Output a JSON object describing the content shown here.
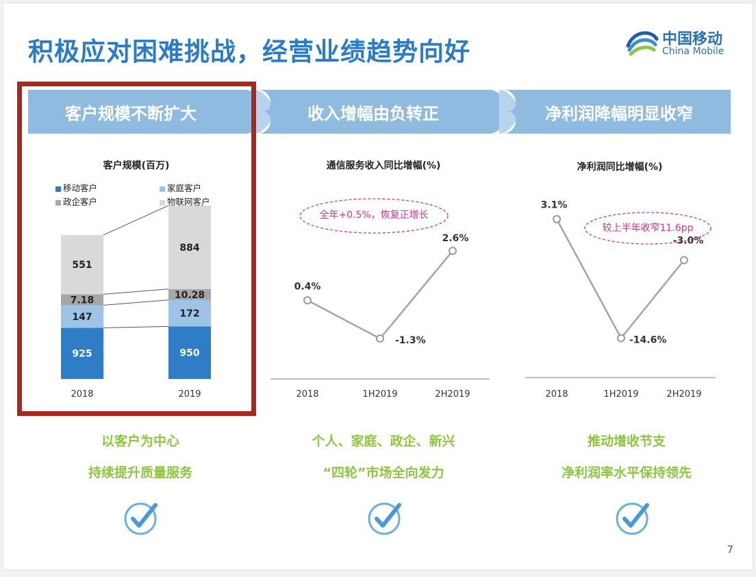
{
  "title": "积极应对困难挑战，经营业绩趋势向好",
  "logo": {
    "cn": "中国移动",
    "en": "China Mobile"
  },
  "banners": [
    "客户规模不断扩大",
    "收入增幅由负转正",
    "净利润降幅明显收窄"
  ],
  "callouts": [
    "全年+0.5%，恢复正增长",
    "较上半年收窄11.6pp"
  ],
  "summaries": [
    [
      "以客户为中心",
      "持续提升质量服务"
    ],
    [
      "个人、家庭、政企、新兴",
      "“四轮”市场全向发力"
    ],
    [
      "推动增收节支",
      "净利润率水平保持领先"
    ]
  ],
  "page_number": "7",
  "colors": {
    "accent": "#2b7cc8",
    "banner": "#8fbbe0",
    "highlight_border": "#a7281e",
    "summary_text": "#8dc63f",
    "callout": "#d6338a"
  },
  "icons": [
    "check-circle-icon",
    "check-circle-icon",
    "check-circle-icon",
    "china-mobile-logo-icon"
  ],
  "chart_data": [
    {
      "type": "bar",
      "stacked": true,
      "title": "客户规模(百万)",
      "categories": [
        "2018",
        "2019"
      ],
      "series": [
        {
          "name": "移动客户",
          "values": [
            925,
            950
          ],
          "color": "#2e7dc6",
          "label_color": "#ffffff"
        },
        {
          "name": "家庭客户",
          "values": [
            147,
            172
          ],
          "color": "#9dc3e6",
          "label_color": "#222222"
        },
        {
          "name": "政企客户",
          "values": [
            7.18,
            10.28
          ],
          "color": "#a6a6a6",
          "label_color": "#222222"
        },
        {
          "name": "物联网客户",
          "values": [
            551,
            884
          ],
          "color": "#d9d9d9",
          "label_color": "#222222"
        }
      ]
    },
    {
      "type": "line",
      "title": "通信服务收入同比增幅(%)",
      "categories": [
        "2018",
        "1H2019",
        "2H2019"
      ],
      "values": [
        0.4,
        -1.3,
        2.6
      ],
      "labels": [
        "0.4%",
        "-1.3%",
        "2.6%"
      ],
      "ylim": [
        -2.0,
        3.0
      ]
    },
    {
      "type": "line",
      "title": "净利润同比增幅(%)",
      "categories": [
        "2018",
        "1H2019",
        "2H2019"
      ],
      "values": [
        3.1,
        -14.6,
        -3.0
      ],
      "labels": [
        "3.1%",
        "-14.6%",
        "-3.0%"
      ],
      "ylim": [
        -17.0,
        4.6
      ]
    }
  ]
}
